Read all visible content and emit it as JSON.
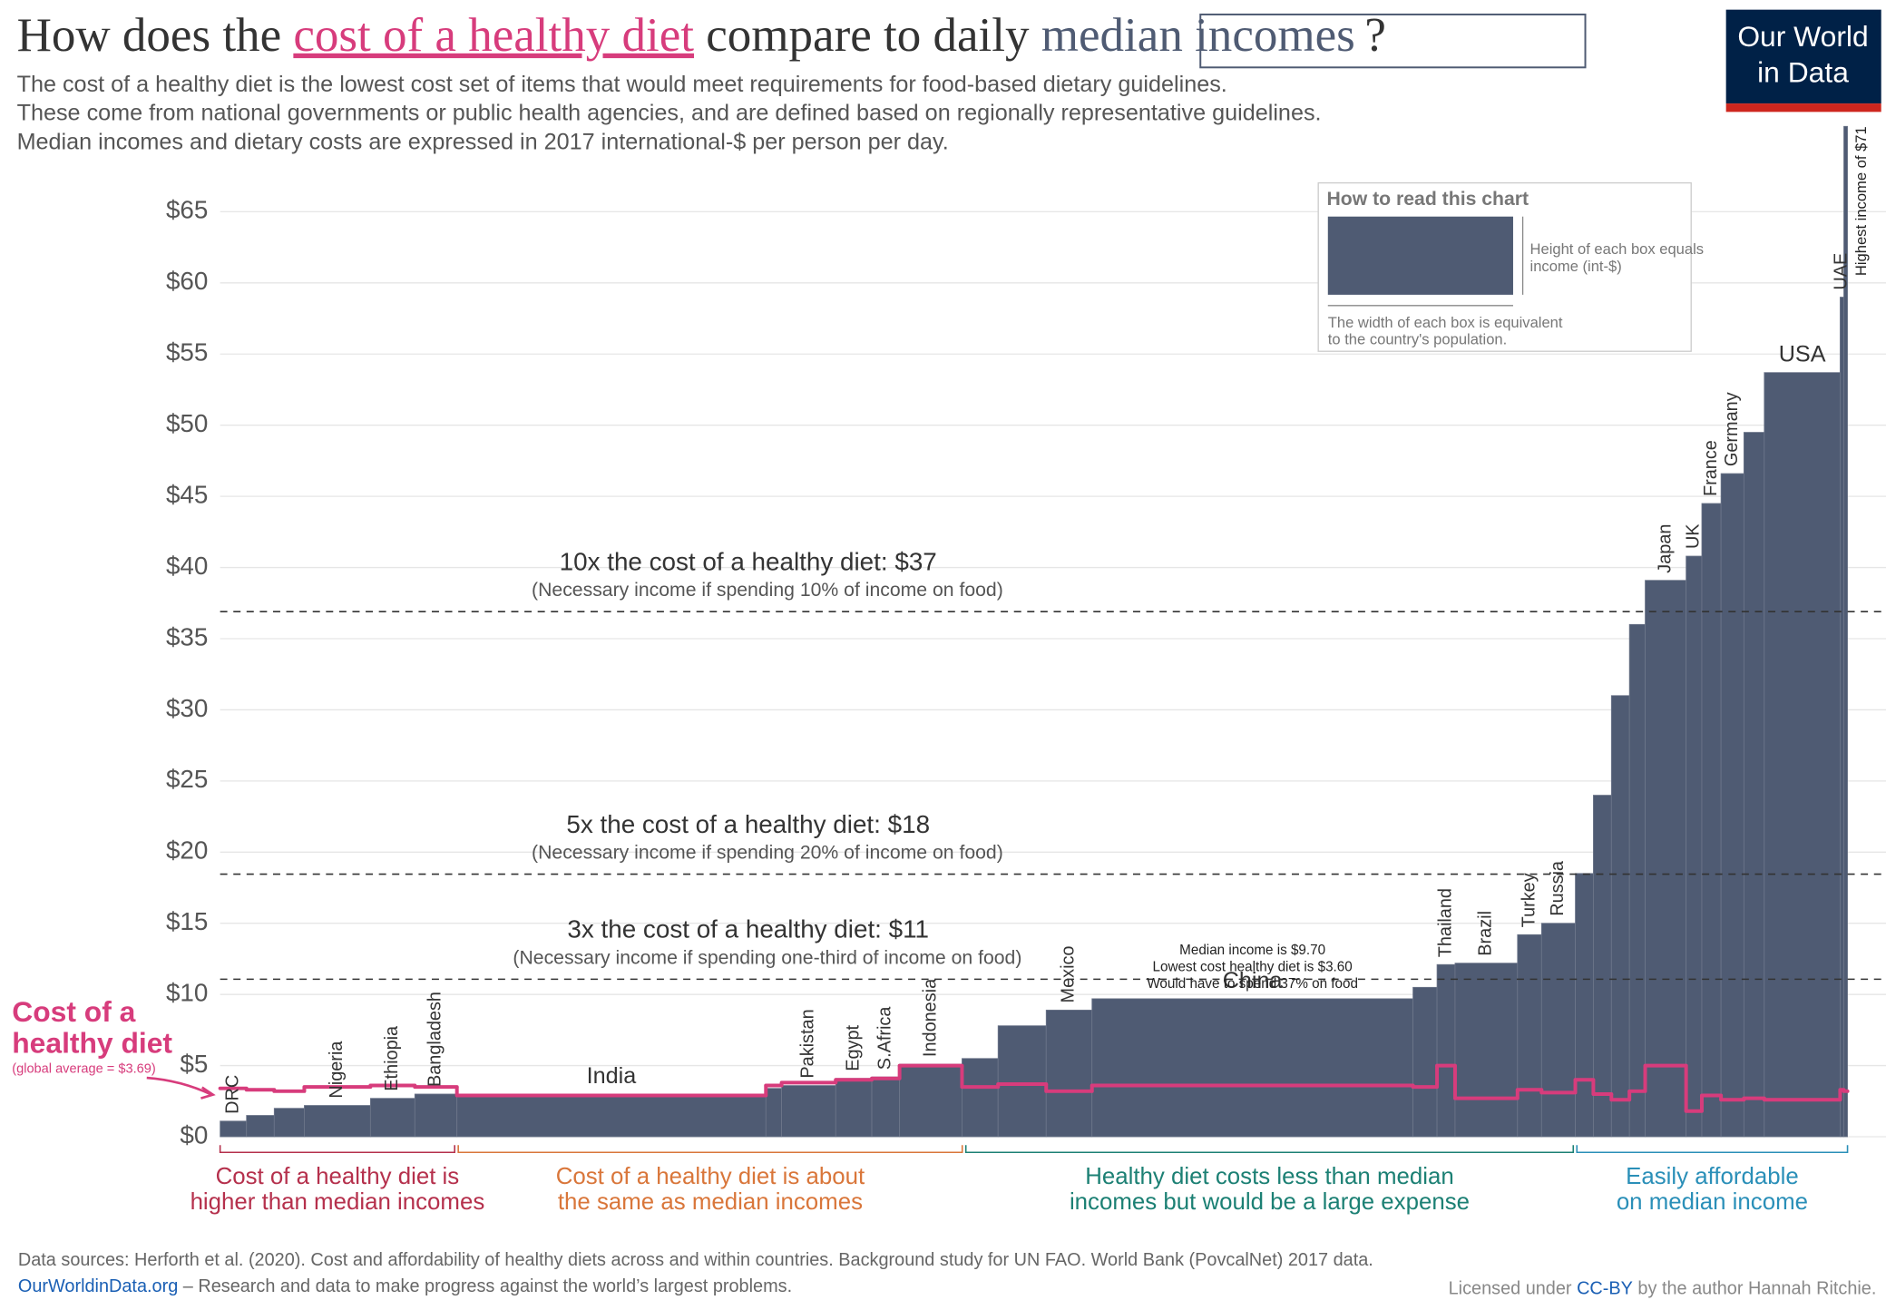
{
  "header": {
    "title_parts": [
      "How does the ",
      "cost of a healthy diet",
      " compare to daily ",
      "median incomes",
      "?"
    ],
    "subtitle": [
      "The cost of a healthy diet is the lowest cost set of items that would meet requirements for food-based dietary guidelines.",
      "These come from national governments or public health agencies, and are defined based on regionally representative guidelines.",
      "Median incomes and dietary costs are expressed in 2017 international-$ per person per day."
    ],
    "logo": [
      "Our World",
      "in Data"
    ]
  },
  "chart_data": {
    "type": "variable-width-bar",
    "categories": [
      "DRC",
      null,
      null,
      "Nigeria",
      "Ethiopia",
      "Bangladesh",
      "India",
      null,
      "Pakistan",
      "Egypt",
      "S.Africa",
      "Indonesia",
      null,
      null,
      "Mexico",
      "China",
      null,
      "Thailand",
      "Brazil",
      "Turkey",
      "Russia",
      null,
      null,
      null,
      null,
      "Japan",
      "UK",
      "France",
      "Germany",
      null,
      "USA",
      "UAE",
      null
    ],
    "population": [
      114,
      120,
      130,
      286,
      192,
      182,
      1336,
      68,
      234,
      156,
      120,
      270,
      156,
      208,
      198,
      1388,
      104,
      78,
      270,
      104,
      146,
      78,
      78,
      78,
      68,
      177,
      68,
      83,
      99,
      88,
      328,
      16,
      16
    ],
    "values": [
      1.1,
      1.5,
      2.0,
      2.2,
      2.7,
      3.0,
      3.0,
      3.4,
      3.6,
      4.1,
      4.2,
      5.1,
      5.5,
      7.8,
      8.9,
      9.7,
      10.5,
      12.1,
      12.2,
      14.2,
      15.0,
      18.5,
      24,
      31,
      36,
      39.1,
      40.8,
      44.5,
      46.6,
      49.5,
      53.7,
      59,
      71
    ],
    "color": "#4f5b73",
    "diet_cost": {
      "label": [
        "Cost of a",
        "healthy diet"
      ],
      "note": "(global average = $3.69)",
      "color": "#d73c7c",
      "values": [
        3.4,
        3.3,
        3.2,
        3.5,
        3.6,
        3.5,
        2.9,
        3.6,
        3.8,
        4.0,
        4.1,
        5.0,
        3.5,
        3.7,
        3.2,
        3.6,
        3.5,
        5.0,
        2.7,
        3.3,
        3.1,
        4.0,
        3.0,
        2.6,
        3.2,
        5.0,
        1.8,
        2.9,
        2.6,
        2.7,
        2.6,
        3.3,
        3.2
      ]
    },
    "xlim": [
      0,
      7037
    ],
    "ylim": [
      0,
      71
    ],
    "yticks": [
      {
        "value": 0,
        "label": "$0"
      },
      {
        "value": 5,
        "label": "$5"
      },
      {
        "value": 10,
        "label": "$10"
      },
      {
        "value": 15,
        "label": "$15"
      },
      {
        "value": 20,
        "label": "$20"
      },
      {
        "value": 25,
        "label": "$25"
      },
      {
        "value": 30,
        "label": "$30"
      },
      {
        "value": 35,
        "label": "$35"
      },
      {
        "value": 40,
        "label": "$40"
      },
      {
        "value": 45,
        "label": "$45"
      },
      {
        "value": 50,
        "label": "$50"
      },
      {
        "value": 55,
        "label": "$55"
      },
      {
        "value": 60,
        "label": "$60"
      },
      {
        "value": 65,
        "label": "$65"
      }
    ],
    "grid": true,
    "reference_lines": [
      {
        "value": 36.9,
        "label": "10x the cost of a healthy diet: $37",
        "note": "(Necessary income if spending 10% of income on food)"
      },
      {
        "value": 18.45,
        "label": "5x the cost of a healthy diet: $18",
        "note": "(Necessary income if spending 20% of income on food)"
      },
      {
        "value": 11.07,
        "label": "3x the cost of a healthy diet: $11",
        "note": "(Necessary income if spending one-third of income on food)"
      }
    ],
    "china_note": [
      "Median income is $9.70",
      "Lowest cost healthy diet is $3.60",
      "Would have to spend 37% on food"
    ],
    "top_note": "Highest income of $71",
    "groups": [
      {
        "label": [
          "Cost of a healthy diet is",
          "higher than median incomes"
        ],
        "color": "#b5304c"
      },
      {
        "label": [
          "Cost of a healthy diet is about",
          "the same as median incomes"
        ],
        "color": "#d9763a"
      },
      {
        "label": [
          "Healthy diet costs less than median",
          "incomes but would be a large expense"
        ],
        "color": "#1c8074"
      },
      {
        "label": [
          "Easily affordable",
          "on median income"
        ],
        "color": "#2a8fb8"
      }
    ],
    "how_to_read": {
      "title": "How to read this chart",
      "height": [
        "Height of each box equals",
        "income (int-$)"
      ],
      "width": [
        "The width of each box is equivalent",
        "to the country's population."
      ]
    }
  },
  "footer": {
    "sources": "Data sources: Herforth et al. (2020). Cost and affordability of healthy diets across and within countries. Background study for UN FAO. World Bank (PovcalNet) 2017 data.",
    "site": "OurWorldinData.org",
    "tagline": " – Research and data to make progress against the world’s largest problems.",
    "license": [
      "Licensed under ",
      "CC-BY",
      " by the author Hannah Ritchie."
    ]
  }
}
